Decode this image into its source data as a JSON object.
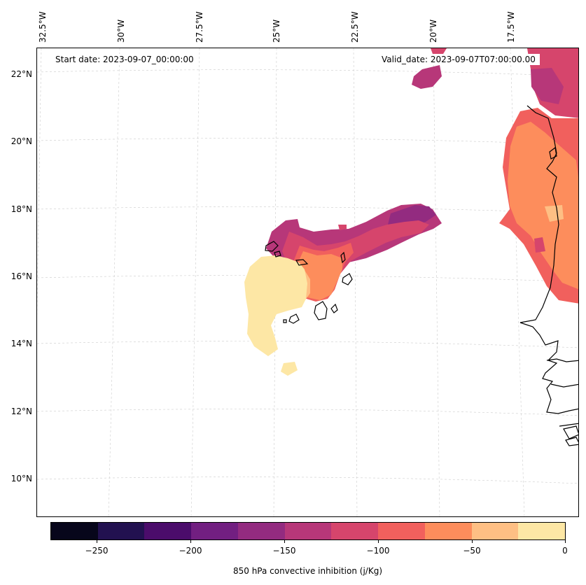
{
  "map": {
    "start_date": "Start date: 2023-09-07_00:00:00",
    "valid_date": "Valid_date: 2023-09-07T07:00:00.00",
    "lon_labels": [
      "32.5°W",
      "30°W",
      "27.5°W",
      "25°W",
      "22.5°W",
      "20°W",
      "17.5°W"
    ],
    "lat_labels": [
      "22°N",
      "20°N",
      "18°N",
      "16°N",
      "14°N",
      "12°N",
      "10°N"
    ],
    "variable": "850 hPa convective inhibition",
    "units": "j/Kg"
  },
  "colorbar": {
    "label": "850 hPa convective inhibition (j/Kg)",
    "tick_labels": [
      "−250",
      "−200",
      "−150",
      "−100",
      "−50",
      "0"
    ],
    "levels": [
      -275,
      -250,
      -225,
      -200,
      -175,
      -150,
      -125,
      -100,
      -75,
      -50,
      -25,
      0
    ],
    "colors": [
      "#07061b",
      "#221150",
      "#4b0c6b",
      "#721f81",
      "#932b80",
      "#b73779",
      "#d6456c",
      "#f1605d",
      "#fd8d5c",
      "#febf84",
      "#fde7a5"
    ]
  }
}
